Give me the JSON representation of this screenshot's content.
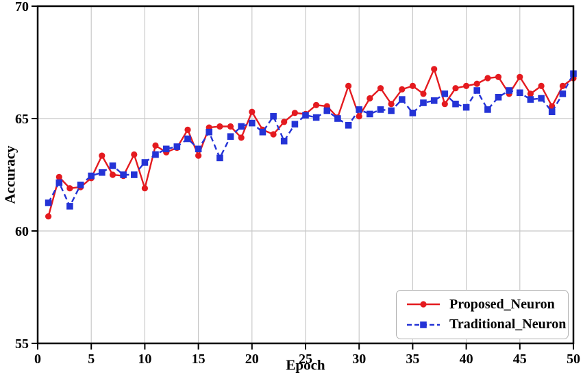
{
  "chart_data": {
    "type": "line",
    "title": "",
    "xlabel": "Epoch",
    "ylabel": "Accuracy",
    "xlim": [
      0,
      50
    ],
    "ylim": [
      55,
      70
    ],
    "x_ticks": [
      0,
      5,
      10,
      15,
      20,
      25,
      30,
      35,
      40,
      45,
      50
    ],
    "y_ticks": [
      55,
      60,
      65,
      70
    ],
    "grid": true,
    "legend_position": "lower right",
    "x": [
      1,
      2,
      3,
      4,
      5,
      6,
      7,
      8,
      9,
      10,
      11,
      12,
      13,
      14,
      15,
      16,
      17,
      18,
      19,
      20,
      21,
      22,
      23,
      24,
      25,
      26,
      27,
      28,
      29,
      30,
      31,
      32,
      33,
      34,
      35,
      36,
      37,
      38,
      39,
      40,
      41,
      42,
      43,
      44,
      45,
      46,
      47,
      48,
      49,
      50
    ],
    "series": [
      {
        "name": "Proposed_Neuron",
        "color": "#e41a1f",
        "style": "solid",
        "marker": "circle",
        "values": [
          60.65,
          62.4,
          61.9,
          61.95,
          62.35,
          63.35,
          62.5,
          62.45,
          63.4,
          61.9,
          63.8,
          63.5,
          63.7,
          64.5,
          63.35,
          64.6,
          64.65,
          64.65,
          64.15,
          65.3,
          64.5,
          64.3,
          64.85,
          65.25,
          65.2,
          65.6,
          65.55,
          65.05,
          66.45,
          65.1,
          65.9,
          66.35,
          65.65,
          66.3,
          66.45,
          66.1,
          67.2,
          65.65,
          66.35,
          66.45,
          66.55,
          66.8,
          66.85,
          66.1,
          66.85,
          66.1,
          66.45,
          65.55,
          66.45,
          66.8
        ]
      },
      {
        "name": "Traditional_Neuron",
        "color": "#2433d6",
        "style": "dashed",
        "marker": "square",
        "values": [
          61.25,
          62.15,
          61.1,
          62.05,
          62.45,
          62.6,
          62.9,
          62.5,
          62.5,
          63.05,
          63.4,
          63.65,
          63.75,
          64.1,
          63.65,
          64.4,
          63.25,
          64.2,
          64.65,
          64.8,
          64.4,
          65.1,
          64.0,
          64.75,
          65.15,
          65.05,
          65.35,
          65.0,
          64.7,
          65.4,
          65.2,
          65.4,
          65.35,
          65.85,
          65.25,
          65.7,
          65.8,
          66.1,
          65.65,
          65.5,
          66.25,
          65.4,
          65.95,
          66.25,
          66.15,
          65.85,
          65.9,
          65.3,
          66.1,
          67.0
        ]
      }
    ],
    "colors": {
      "grid": "#c8c8c8",
      "axis": "#000000",
      "background": "#ffffff",
      "legend_border": "#b0b0b0"
    }
  }
}
